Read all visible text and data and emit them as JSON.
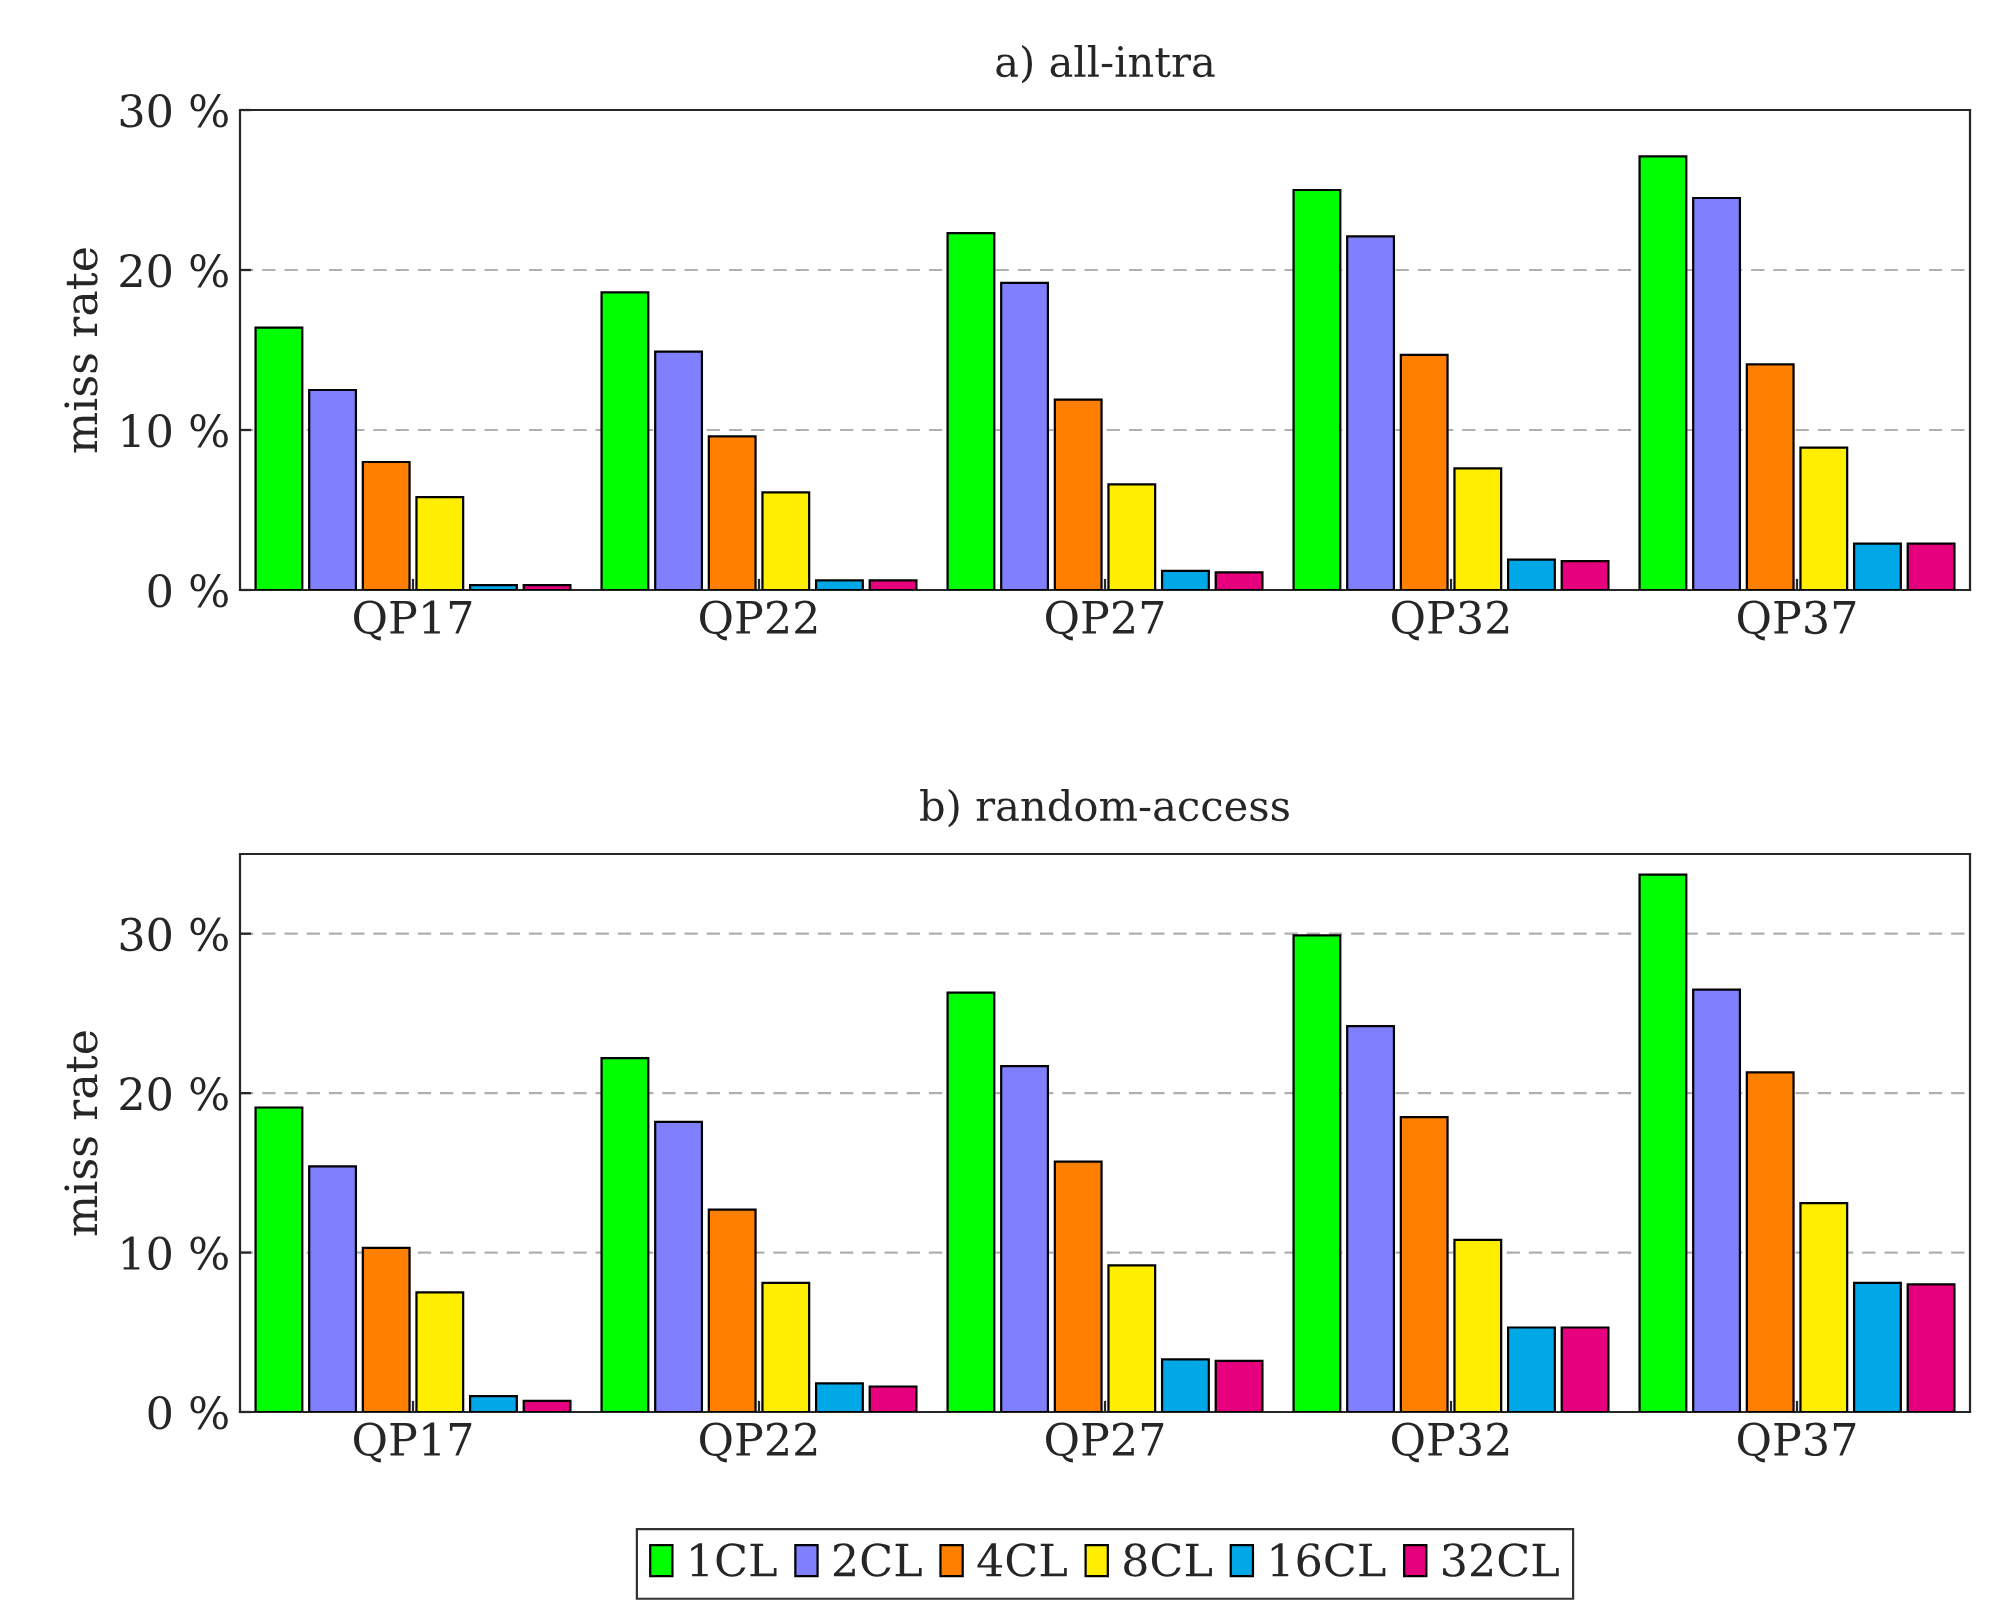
{
  "chart_data": [
    {
      "type": "bar",
      "title": "a) all-intra",
      "ylabel": "miss rate",
      "categories": [
        "QP17",
        "QP22",
        "QP27",
        "QP32",
        "QP37"
      ],
      "ylim": [
        0,
        30
      ],
      "yticks": [
        {
          "value": 0,
          "label": "0 %"
        },
        {
          "value": 10,
          "label": "10 %"
        },
        {
          "value": 20,
          "label": "20 %"
        },
        {
          "value": 30,
          "label": "30 %"
        }
      ],
      "grid": "y",
      "legend": false,
      "series": [
        {
          "color": "#00ff00",
          "values": [
            16.4,
            18.6,
            22.3,
            25.0,
            27.1
          ]
        },
        {
          "color": "#8080ff",
          "values": [
            12.5,
            14.9,
            19.2,
            22.1,
            24.5
          ]
        },
        {
          "color": "#ff8000",
          "values": [
            8.0,
            9.6,
            11.9,
            14.7,
            14.1
          ]
        },
        {
          "color": "#ffee00",
          "values": [
            5.8,
            6.1,
            6.6,
            7.6,
            8.9
          ]
        },
        {
          "color": "#00a8e8",
          "values": [
            0.3,
            0.6,
            1.2,
            1.9,
            2.9
          ]
        },
        {
          "color": "#e6007e",
          "values": [
            0.3,
            0.6,
            1.1,
            1.8,
            2.9
          ]
        }
      ]
    },
    {
      "type": "bar",
      "title": "b) random-access",
      "ylabel": "miss rate",
      "categories": [
        "QP17",
        "QP22",
        "QP27",
        "QP32",
        "QP37"
      ],
      "ylim": [
        0,
        35
      ],
      "yticks": [
        {
          "value": 0,
          "label": "0 %"
        },
        {
          "value": 10,
          "label": "10 %"
        },
        {
          "value": 20,
          "label": "20 %"
        },
        {
          "value": 30,
          "label": "30 %"
        }
      ],
      "grid": "y",
      "legend": "bottom",
      "series": [
        {
          "name": "1CL",
          "color": "#00ff00",
          "values": [
            19.1,
            22.2,
            26.3,
            29.9,
            33.7
          ]
        },
        {
          "name": "2CL",
          "color": "#8080ff",
          "values": [
            15.4,
            18.2,
            21.7,
            24.2,
            26.5
          ]
        },
        {
          "name": "4CL",
          "color": "#ff8000",
          "values": [
            10.3,
            12.7,
            15.7,
            18.5,
            21.3
          ]
        },
        {
          "name": "8CL",
          "color": "#ffee00",
          "values": [
            7.5,
            8.1,
            9.2,
            10.8,
            13.1
          ]
        },
        {
          "name": "16CL",
          "color": "#00a8e8",
          "values": [
            1.0,
            1.8,
            3.3,
            5.3,
            8.1
          ]
        },
        {
          "name": "32CL",
          "color": "#e6007e",
          "values": [
            0.7,
            1.6,
            3.2,
            5.3,
            8.0
          ]
        }
      ]
    }
  ]
}
